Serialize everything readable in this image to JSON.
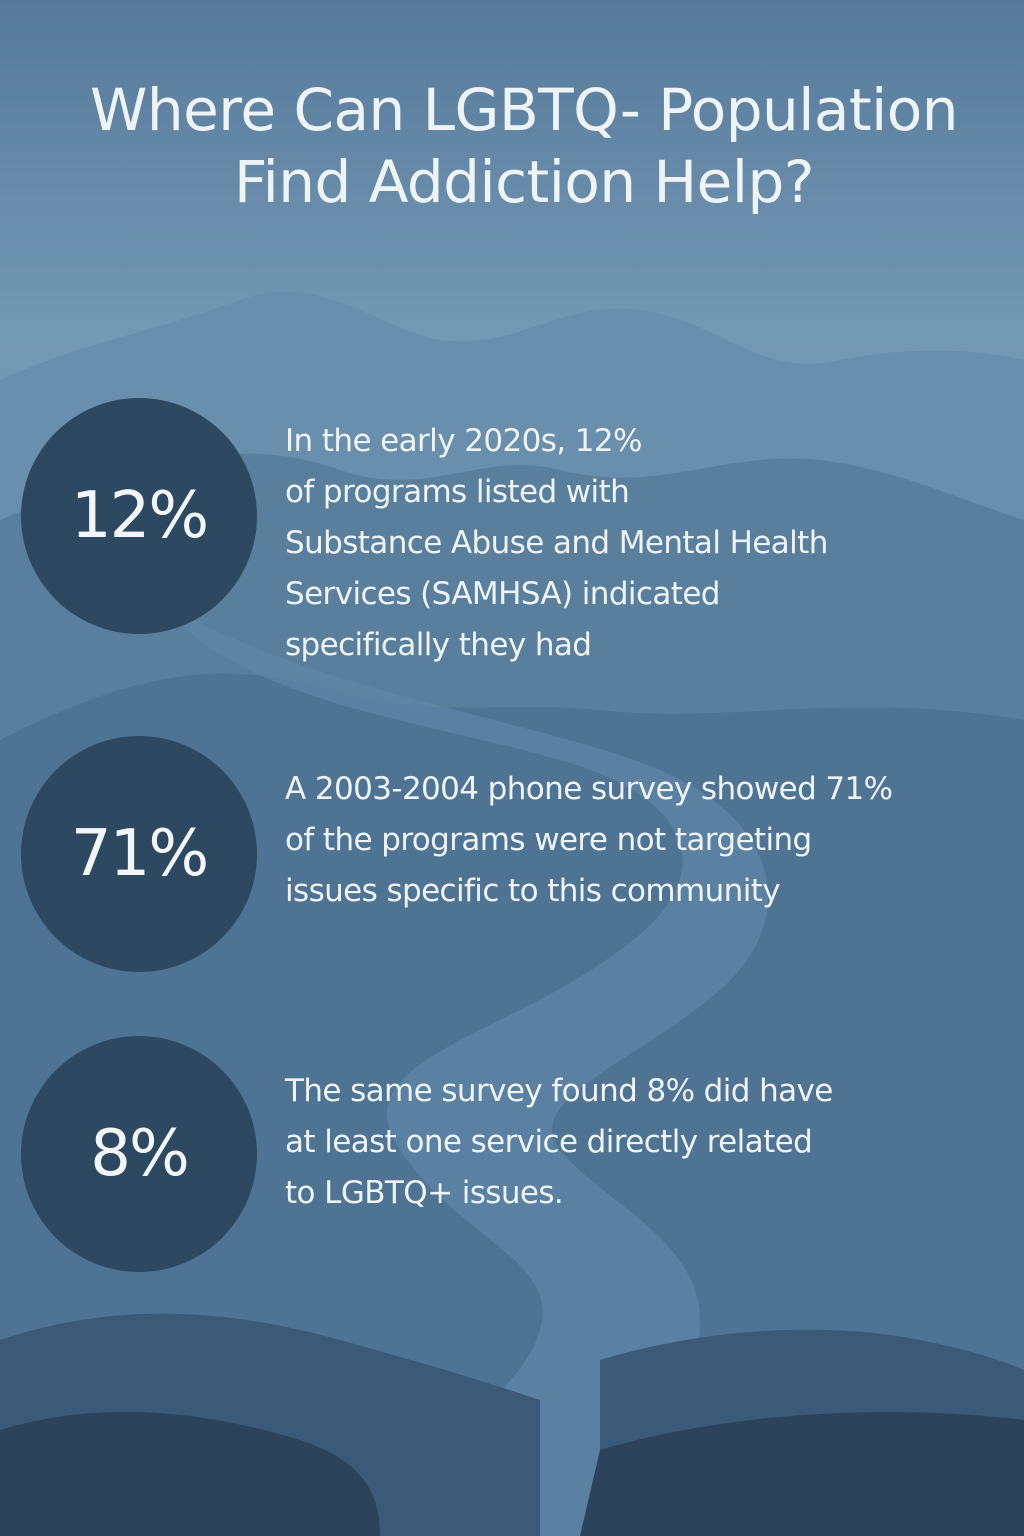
{
  "title": {
    "line1": "Where Can LGBTQ- Population",
    "line2": "Find Addiction Help?"
  },
  "colors": {
    "sky_top": "#5a7f9c",
    "sky_mid": "#7a9db8",
    "circle": "#2c4961",
    "text": "#eef3f6",
    "river": "#5f86a6"
  },
  "stats": [
    {
      "value": "12%",
      "lines": [
        "In the early 2020s, 12%",
        "of programs listed with",
        "Substance Abuse and Mental Health",
        "Services (SAMHSA) indicated",
        "specifically they had"
      ]
    },
    {
      "value": "71%",
      "lines": [
        "A 2003-2004 phone survey showed 71%",
        "of the programs were not targeting",
        "issues specific to this community"
      ]
    },
    {
      "value": "8%",
      "lines": [
        "The same survey found 8% did have",
        "at least one service directly related",
        "to LGBTQ+ issues."
      ]
    }
  ]
}
